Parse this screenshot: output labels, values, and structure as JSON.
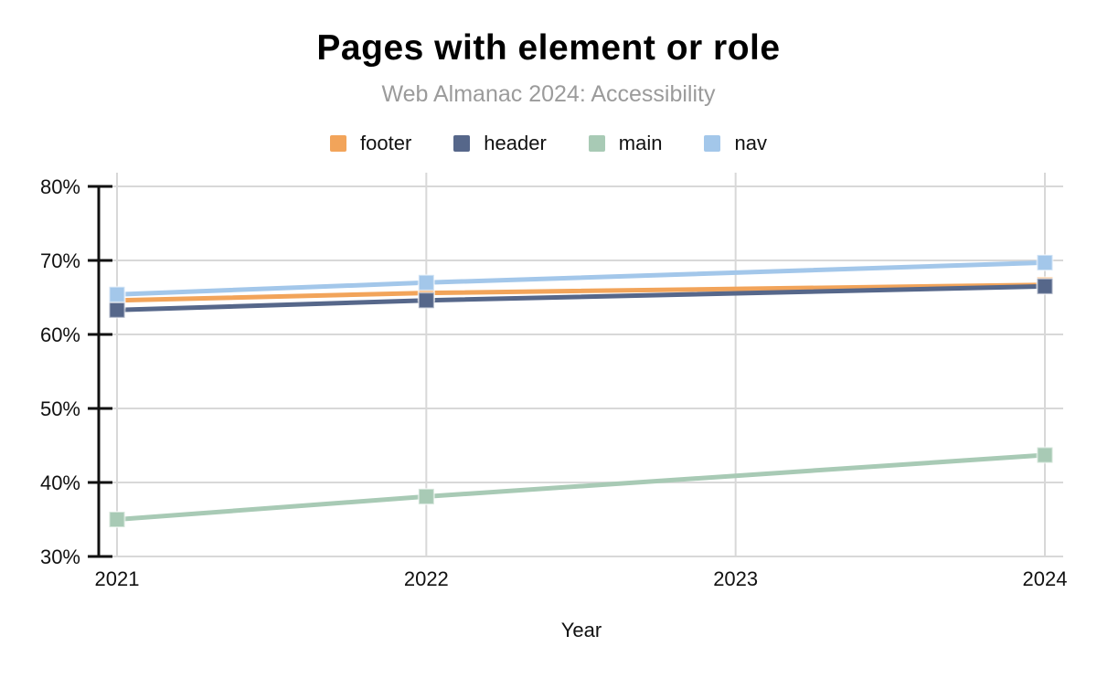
{
  "chart_data": {
    "type": "line",
    "title": "Pages with element or role",
    "subtitle": "Web Almanac 2024: Accessibility",
    "xlabel": "Year",
    "x": [
      2021,
      2022,
      2024
    ],
    "x_tick_labels": [
      "2021",
      "2022",
      "2023",
      "2024"
    ],
    "xlim": [
      2021,
      2024
    ],
    "ylim": [
      30,
      80
    ],
    "y_tick_step": 10,
    "y_tick_suffix": "%",
    "grid": true,
    "legend_position": "top",
    "marker": "square",
    "series": [
      {
        "name": "footer",
        "color": "#F2A45A",
        "values": [
          64.6,
          65.6,
          66.7
        ]
      },
      {
        "name": "header",
        "color": "#56678A",
        "values": [
          63.3,
          64.6,
          66.5
        ]
      },
      {
        "name": "main",
        "color": "#A8CAB5",
        "values": [
          35.0,
          38.1,
          43.7
        ]
      },
      {
        "name": "nav",
        "color": "#A3C7EA",
        "values": [
          65.4,
          67.0,
          69.7
        ]
      }
    ],
    "style_colors": {
      "gridline": "#D8D8D8",
      "axis": "#111111",
      "tick_label": "#111111",
      "subtitle": "#9B9B9B",
      "title": "#000000"
    }
  }
}
